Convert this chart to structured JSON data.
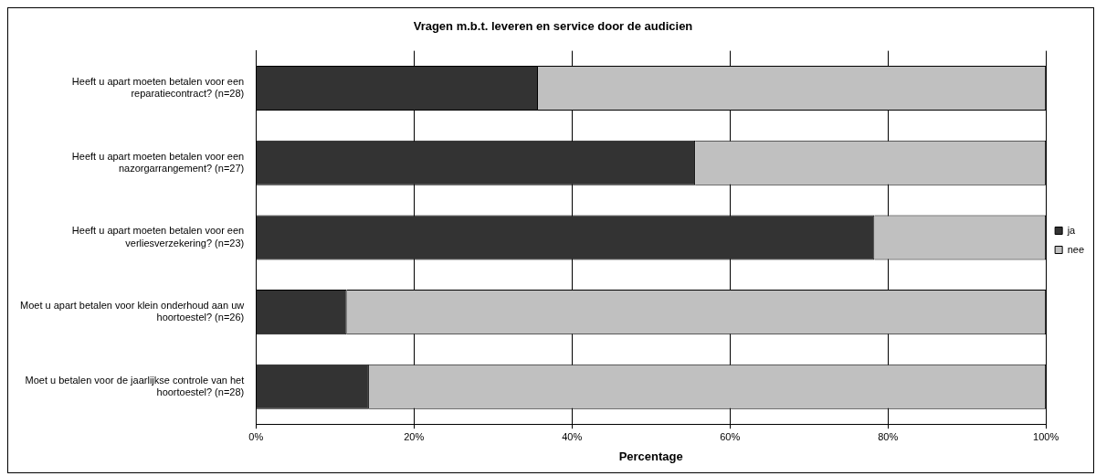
{
  "chart_data": {
    "type": "bar",
    "orientation": "horizontal",
    "stacked": true,
    "title": "Vragen m.b.t. leveren en service door de audicien",
    "xlabel": "Percentage",
    "categories": [
      "Heeft u apart moeten betalen voor een reparatiecontract? (n=28)",
      "Heeft u apart moeten betalen voor een nazorgarrangement? (n=27)",
      "Heeft u apart moeten betalen voor een verliesverzekering? (n=23)",
      "Moet u apart betalen voor klein onderhoud aan uw hoortoestel? (n=26)",
      "Moet u betalen voor de jaarlijkse controle van het hoortoestel? (n=28)"
    ],
    "series": [
      {
        "name": "ja",
        "color": "#333333",
        "values": [
          35.7,
          55.6,
          78.3,
          11.5,
          14.3
        ]
      },
      {
        "name": "nee",
        "color": "#c0c0c0",
        "values": [
          64.3,
          44.4,
          21.7,
          88.5,
          85.7
        ]
      }
    ],
    "xlim": [
      0,
      100
    ],
    "xticks": [
      {
        "value": 0,
        "label": "0%"
      },
      {
        "value": 20,
        "label": "20%"
      },
      {
        "value": 40,
        "label": "40%"
      },
      {
        "value": 60,
        "label": "60%"
      },
      {
        "value": 80,
        "label": "80%"
      },
      {
        "value": 100,
        "label": "100%"
      }
    ],
    "grid": "x",
    "legend": "right"
  }
}
